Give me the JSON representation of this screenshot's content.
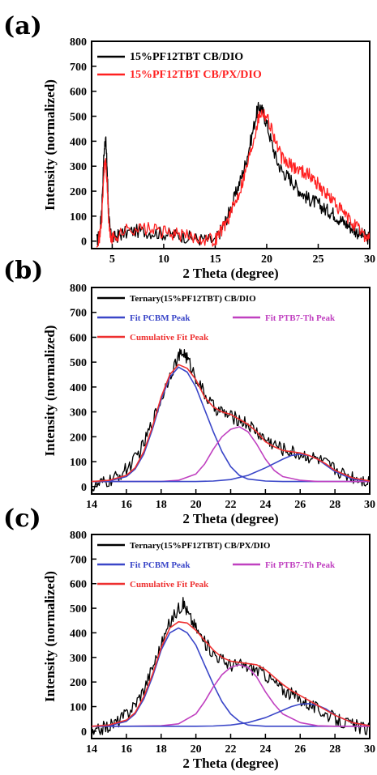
{
  "chart_data": [
    {
      "panel": "(a)",
      "type": "line",
      "xlabel": "2 Theta (degree)",
      "ylabel": "Intensity (normalized)",
      "xlim": [
        3,
        30
      ],
      "ylim": [
        -30,
        800
      ],
      "xticks": [
        5,
        10,
        15,
        20,
        25,
        30
      ],
      "yticks": [
        0,
        100,
        200,
        300,
        400,
        500,
        600,
        700,
        800
      ],
      "legend_position": "top-left",
      "series": [
        {
          "name": "15%PF12TBT CB/DIO",
          "color": "#000000",
          "x": [
            3.5,
            3.8,
            4.0,
            4.2,
            4.35,
            4.5,
            4.65,
            4.8,
            5.0,
            5.5,
            6,
            7,
            8,
            9,
            10,
            11,
            12,
            13,
            14,
            15,
            15.5,
            16,
            16.5,
            17,
            17.5,
            18,
            18.5,
            19,
            19.3,
            19.6,
            20,
            20.5,
            21,
            21.5,
            22,
            22.5,
            23,
            23.5,
            24,
            24.5,
            25,
            25.5,
            26,
            26.5,
            27,
            27.5,
            28,
            28.5,
            29,
            29.5,
            30
          ],
          "y": [
            0,
            30,
            150,
            350,
            420,
            300,
            120,
            30,
            10,
            20,
            30,
            40,
            40,
            35,
            30,
            25,
            20,
            10,
            5,
            0,
            40,
            80,
            130,
            190,
            250,
            320,
            410,
            510,
            540,
            520,
            470,
            390,
            320,
            280,
            260,
            240,
            210,
            190,
            170,
            160,
            150,
            130,
            120,
            110,
            90,
            75,
            60,
            45,
            30,
            20,
            10
          ]
        },
        {
          "name": "15%PF12TBT CB/PX/DIO",
          "color": "#ff2020",
          "x": [
            3.5,
            3.8,
            4.0,
            4.2,
            4.35,
            4.5,
            4.65,
            4.8,
            5.0,
            5.5,
            6,
            7,
            8,
            9,
            10,
            11,
            12,
            13,
            14,
            15,
            15.5,
            16,
            16.5,
            17,
            17.5,
            18,
            18.5,
            19,
            19.3,
            19.6,
            20,
            20.5,
            21,
            21.5,
            22,
            22.5,
            23,
            23.5,
            24,
            24.5,
            25,
            25.5,
            26,
            26.5,
            27,
            27.5,
            28,
            28.5,
            29,
            29.5,
            30
          ],
          "y": [
            0,
            20,
            100,
            280,
            330,
            230,
            90,
            20,
            10,
            20,
            40,
            50,
            50,
            45,
            35,
            30,
            20,
            15,
            10,
            5,
            40,
            70,
            110,
            160,
            220,
            290,
            370,
            460,
            510,
            520,
            500,
            450,
            380,
            330,
            310,
            300,
            290,
            280,
            270,
            250,
            230,
            200,
            180,
            160,
            130,
            110,
            85,
            65,
            45,
            25,
            10
          ]
        }
      ]
    },
    {
      "panel": "(b)",
      "type": "line",
      "xlabel": "2 Theta (degree)",
      "ylabel": "Intensity (normalized)",
      "xlim": [
        14,
        30
      ],
      "ylim": [
        -30,
        800
      ],
      "xticks": [
        14,
        16,
        18,
        20,
        22,
        24,
        26,
        28,
        30
      ],
      "yticks": [
        0,
        100,
        200,
        300,
        400,
        500,
        600,
        700,
        800
      ],
      "legend_position": "top",
      "series": [
        {
          "name": "Ternary(15%PF12TBT) CB/DIO",
          "color": "#000000",
          "x": [
            14,
            14.5,
            15,
            15.5,
            16,
            16.5,
            17,
            17.5,
            18,
            18.5,
            19,
            19.3,
            19.6,
            20,
            20.5,
            21,
            21.5,
            22,
            22.5,
            23,
            23.5,
            24,
            24.5,
            25,
            25.5,
            26,
            26.5,
            27,
            27.5,
            28,
            28.5,
            29,
            29.5,
            30
          ],
          "y": [
            -10,
            10,
            20,
            40,
            70,
            110,
            170,
            260,
            350,
            450,
            520,
            540,
            500,
            440,
            370,
            320,
            300,
            280,
            270,
            250,
            220,
            190,
            170,
            150,
            140,
            130,
            120,
            110,
            90,
            70,
            50,
            40,
            30,
            20
          ]
        },
        {
          "name": "Fit PCBM Peak",
          "color": "#3a46c8",
          "legend_col": 0,
          "x": [
            14,
            15,
            16,
            16.5,
            17,
            17.5,
            18,
            18.5,
            19,
            19.5,
            20,
            20.5,
            21,
            21.5,
            22,
            22.5,
            23,
            24,
            25,
            26,
            27,
            28,
            29,
            30
          ],
          "y": [
            20,
            22,
            40,
            70,
            130,
            230,
            350,
            440,
            480,
            460,
            400,
            310,
            220,
            140,
            80,
            45,
            30,
            22,
            20,
            20,
            20,
            20,
            20,
            20
          ]
        },
        {
          "name": "Fit PTB7-Th Peak",
          "color": "#c040c0",
          "legend_col": 1,
          "x": [
            14,
            16,
            18,
            19,
            20,
            20.5,
            21,
            21.5,
            22,
            22.5,
            23,
            23.5,
            24,
            24.5,
            25,
            26,
            27,
            28,
            29,
            30
          ],
          "y": [
            20,
            20,
            20,
            25,
            50,
            90,
            150,
            200,
            230,
            240,
            220,
            170,
            110,
            65,
            40,
            25,
            20,
            20,
            20,
            20
          ]
        },
        {
          "name": "Fit PCBM Peak (2nd)",
          "color": "#3a46c8",
          "in_legend": false,
          "x": [
            14,
            20,
            21,
            22,
            23,
            24,
            25,
            25.5,
            26,
            26.5,
            27,
            27.5,
            28,
            29,
            30
          ],
          "y": [
            20,
            20,
            22,
            28,
            45,
            75,
            110,
            125,
            130,
            125,
            110,
            85,
            60,
            30,
            22
          ]
        },
        {
          "name": "Cumulative Fit Peak",
          "color": "#ee3030",
          "legend_col": 0,
          "legend_row": 2,
          "x": [
            14,
            15,
            16,
            16.5,
            17,
            17.5,
            18,
            18.5,
            19,
            19.5,
            20,
            20.5,
            21,
            21.5,
            22,
            22.5,
            23,
            23.5,
            24,
            24.5,
            25,
            25.5,
            26,
            26.5,
            27,
            27.5,
            28,
            29,
            30
          ],
          "y": [
            20,
            25,
            45,
            75,
            140,
            240,
            360,
            450,
            490,
            475,
            430,
            360,
            320,
            300,
            290,
            270,
            250,
            220,
            180,
            160,
            145,
            140,
            135,
            125,
            110,
            90,
            65,
            35,
            22
          ]
        }
      ]
    },
    {
      "panel": "(c)",
      "type": "line",
      "xlabel": "2 Theta (degree)",
      "ylabel": "Intensity (normalized)",
      "xlim": [
        14,
        30
      ],
      "ylim": [
        -30,
        800
      ],
      "xticks": [
        14,
        16,
        18,
        20,
        22,
        24,
        26,
        28,
        30
      ],
      "yticks": [
        0,
        100,
        200,
        300,
        400,
        500,
        600,
        700,
        800
      ],
      "legend_position": "top",
      "series": [
        {
          "name": "Ternary(15%PF12TBT) CB/PX/DIO",
          "color": "#000000",
          "x": [
            14,
            14.5,
            15,
            15.5,
            16,
            16.5,
            17,
            17.5,
            18,
            18.5,
            19,
            19.3,
            19.6,
            20,
            20.5,
            21,
            21.5,
            22,
            22.5,
            23,
            23.5,
            24,
            24.5,
            25,
            25.5,
            26,
            26.5,
            27,
            27.5,
            28,
            28.5,
            29,
            29.5,
            30
          ],
          "y": [
            -20,
            10,
            20,
            40,
            70,
            110,
            170,
            260,
            350,
            440,
            500,
            520,
            470,
            420,
            360,
            320,
            290,
            270,
            270,
            260,
            250,
            230,
            200,
            170,
            150,
            130,
            110,
            90,
            70,
            50,
            35,
            25,
            15,
            5
          ]
        },
        {
          "name": "Fit PCBM Peak",
          "color": "#3a46c8",
          "legend_col": 0,
          "x": [
            14,
            15,
            16,
            16.5,
            17,
            17.5,
            18,
            18.5,
            19,
            19.5,
            20,
            20.5,
            21,
            21.5,
            22,
            22.5,
            23,
            24,
            25,
            26,
            27,
            28,
            29,
            30
          ],
          "y": [
            20,
            22,
            40,
            70,
            130,
            220,
            330,
            400,
            420,
            400,
            350,
            270,
            190,
            120,
            70,
            40,
            25,
            20,
            20,
            20,
            20,
            20,
            20,
            20
          ]
        },
        {
          "name": "Fit PTB7-Th Peak",
          "color": "#c040c0",
          "legend_col": 1,
          "x": [
            14,
            16,
            18,
            19,
            20,
            20.5,
            21,
            21.5,
            22,
            22.5,
            23,
            23.5,
            24,
            24.5,
            25,
            26,
            27,
            28,
            29,
            30
          ],
          "y": [
            20,
            20,
            22,
            30,
            70,
            120,
            180,
            230,
            260,
            270,
            260,
            220,
            160,
            110,
            70,
            35,
            22,
            20,
            20,
            20
          ]
        },
        {
          "name": "Fit PCBM Peak (2nd)",
          "color": "#3a46c8",
          "in_legend": false,
          "x": [
            14,
            20,
            21,
            22,
            23,
            24,
            25,
            25.5,
            26,
            26.5,
            27,
            27.5,
            28,
            29,
            30
          ],
          "y": [
            20,
            20,
            21,
            25,
            35,
            55,
            85,
            100,
            110,
            112,
            105,
            90,
            65,
            35,
            22
          ]
        },
        {
          "name": "Cumulative Fit Peak",
          "color": "#ee3030",
          "legend_col": 0,
          "legend_row": 2,
          "x": [
            14,
            15,
            16,
            16.5,
            17,
            17.5,
            18,
            18.5,
            19,
            19.5,
            20,
            20.5,
            21,
            21.5,
            22,
            22.5,
            23,
            23.5,
            24,
            24.5,
            25,
            25.5,
            26,
            26.5,
            27,
            27.5,
            28,
            29,
            30
          ],
          "y": [
            20,
            25,
            45,
            75,
            140,
            230,
            340,
            420,
            445,
            440,
            410,
            370,
            330,
            300,
            285,
            280,
            275,
            270,
            250,
            220,
            190,
            165,
            145,
            125,
            105,
            85,
            65,
            35,
            22
          ]
        }
      ]
    }
  ]
}
